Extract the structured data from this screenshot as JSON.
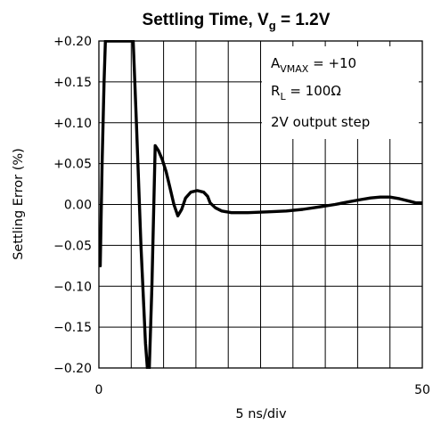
{
  "chart_data": {
    "type": "line",
    "title": {
      "main": "Settling Time, V",
      "subscript": "g",
      "rest": " = 1.2V"
    },
    "xlabel": "5 ns/div",
    "ylabel": "Settling Error (%)",
    "xlim": [
      0,
      50
    ],
    "ylim": [
      -0.2,
      0.2
    ],
    "x_tick_labels": [
      {
        "x": 0,
        "label": "0"
      },
      {
        "x": 50,
        "label": "50"
      }
    ],
    "x_divisions": 10,
    "y_ticks": [
      {
        "y": 0.2,
        "label": "+0.20"
      },
      {
        "y": 0.15,
        "label": "+0.15"
      },
      {
        "y": 0.1,
        "label": "+0.10"
      },
      {
        "y": 0.05,
        "label": "+0.05"
      },
      {
        "y": 0.0,
        "label": "0.00"
      },
      {
        "y": -0.05,
        "label": "−0.05"
      },
      {
        "y": -0.1,
        "label": "−0.10"
      },
      {
        "y": -0.15,
        "label": "−0.15"
      },
      {
        "y": -0.2,
        "label": "−0.20"
      }
    ],
    "grid": true,
    "annotations": [
      {
        "main": "A",
        "subscript": "VMAX",
        "rest": " = +10"
      },
      {
        "main": "R",
        "subscript": "L",
        "rest": " = 100Ω"
      },
      {
        "main": "2V output step",
        "subscript": "",
        "rest": ""
      }
    ],
    "series": [
      {
        "points": [
          [
            0.2,
            -0.075
          ],
          [
            0.5,
            0.05
          ],
          [
            0.8,
            0.15
          ],
          [
            1.0,
            0.2
          ],
          [
            5.3,
            0.2
          ],
          [
            5.8,
            0.1
          ],
          [
            6.5,
            -0.05
          ],
          [
            7.2,
            -0.17
          ],
          [
            7.5,
            -0.2
          ],
          [
            7.8,
            -0.2
          ],
          [
            8.2,
            -0.1
          ],
          [
            8.7,
            0.072
          ],
          [
            9.2,
            0.066
          ],
          [
            9.8,
            0.055
          ],
          [
            10.4,
            0.04
          ],
          [
            11.0,
            0.02
          ],
          [
            11.6,
            0.0
          ],
          [
            12.2,
            -0.014
          ],
          [
            12.8,
            -0.006
          ],
          [
            13.4,
            0.008
          ],
          [
            14.2,
            0.015
          ],
          [
            15.2,
            0.017
          ],
          [
            16.2,
            0.015
          ],
          [
            16.8,
            0.01
          ],
          [
            17.2,
            0.002
          ],
          [
            18.0,
            -0.004
          ],
          [
            19.0,
            -0.008
          ],
          [
            20.5,
            -0.01
          ],
          [
            23.0,
            -0.01
          ],
          [
            26.0,
            -0.009
          ],
          [
            29.0,
            -0.008
          ],
          [
            31.5,
            -0.006
          ],
          [
            34.0,
            -0.003
          ],
          [
            36.5,
            0.0
          ],
          [
            38.5,
            0.003
          ],
          [
            40.5,
            0.006
          ],
          [
            42.0,
            0.008
          ],
          [
            43.5,
            0.009
          ],
          [
            45.0,
            0.009
          ],
          [
            46.5,
            0.007
          ],
          [
            48.0,
            0.004
          ],
          [
            49.0,
            0.002
          ],
          [
            50.0,
            0.002
          ]
        ]
      }
    ]
  }
}
